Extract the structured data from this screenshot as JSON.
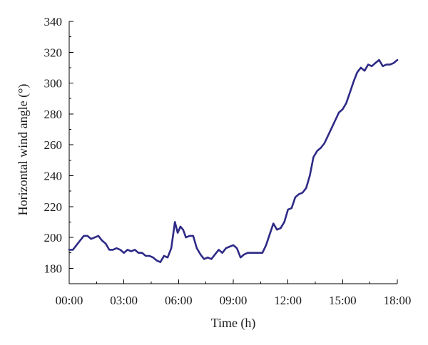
{
  "chart_data": {
    "type": "line",
    "title": "",
    "xlabel": "Time (h)",
    "ylabel": "Horizontal wind angle (°)",
    "x_unit": "h",
    "xlim": [
      0,
      18
    ],
    "ylim": [
      170,
      340
    ],
    "x_ticks": [
      0,
      3,
      6,
      9,
      12,
      15,
      18
    ],
    "x_tick_labels": [
      "00:00",
      "03:00",
      "06:00",
      "09:00",
      "12:00",
      "15:00",
      "18:00"
    ],
    "y_ticks": [
      180,
      200,
      220,
      240,
      260,
      280,
      300,
      320,
      340
    ],
    "y_tick_labels": [
      "180",
      "200",
      "220",
      "240",
      "260",
      "280",
      "300",
      "320",
      "340"
    ],
    "grid": false,
    "legend": "none",
    "color": "#2e2a86",
    "series": [
      {
        "x": [
          0,
          0.2,
          0.4,
          0.6,
          0.8,
          1.0,
          1.2,
          1.4,
          1.6,
          1.8,
          2.0,
          2.2,
          2.4,
          2.6,
          2.8,
          3.0,
          3.2,
          3.4,
          3.6,
          3.8,
          4.0,
          4.2,
          4.4,
          4.6,
          4.8,
          5.0,
          5.2,
          5.4,
          5.6,
          5.8,
          5.95,
          6.1,
          6.25,
          6.4,
          6.6,
          6.8,
          7.0,
          7.2,
          7.4,
          7.6,
          7.8,
          8.0,
          8.2,
          8.4,
          8.6,
          8.8,
          9.0,
          9.2,
          9.4,
          9.6,
          9.8,
          10.0,
          10.2,
          10.4,
          10.6,
          10.8,
          11.0,
          11.2,
          11.4,
          11.6,
          11.8,
          12.0,
          12.2,
          12.4,
          12.6,
          12.8,
          13.0,
          13.2,
          13.4,
          13.6,
          13.8,
          14.0,
          14.2,
          14.4,
          14.6,
          14.8,
          15.0,
          15.2,
          15.4,
          15.6,
          15.8,
          16.0,
          16.2,
          16.4,
          16.6,
          16.8,
          17.0,
          17.2,
          17.4,
          17.6,
          17.8,
          18.0
        ],
        "values": [
          192,
          192,
          195,
          198,
          201,
          201,
          199,
          200,
          201,
          198,
          196,
          192,
          192,
          193,
          192,
          190,
          192,
          191,
          192,
          190,
          190,
          188,
          188,
          187,
          185,
          184,
          188,
          187,
          193,
          210,
          203,
          207,
          205,
          200,
          201,
          201,
          193,
          189,
          186,
          187,
          186,
          189,
          192,
          190,
          193,
          194,
          195,
          193,
          187,
          189,
          190,
          190,
          190,
          190,
          190,
          195,
          202,
          209,
          205,
          206,
          210,
          218,
          219,
          226,
          228,
          229,
          232,
          240,
          252,
          256,
          258,
          261,
          266,
          271,
          276,
          281,
          283,
          287,
          294,
          301,
          307,
          310,
          308,
          312,
          311,
          313,
          315,
          311,
          312,
          312,
          313,
          315
        ]
      }
    ]
  }
}
